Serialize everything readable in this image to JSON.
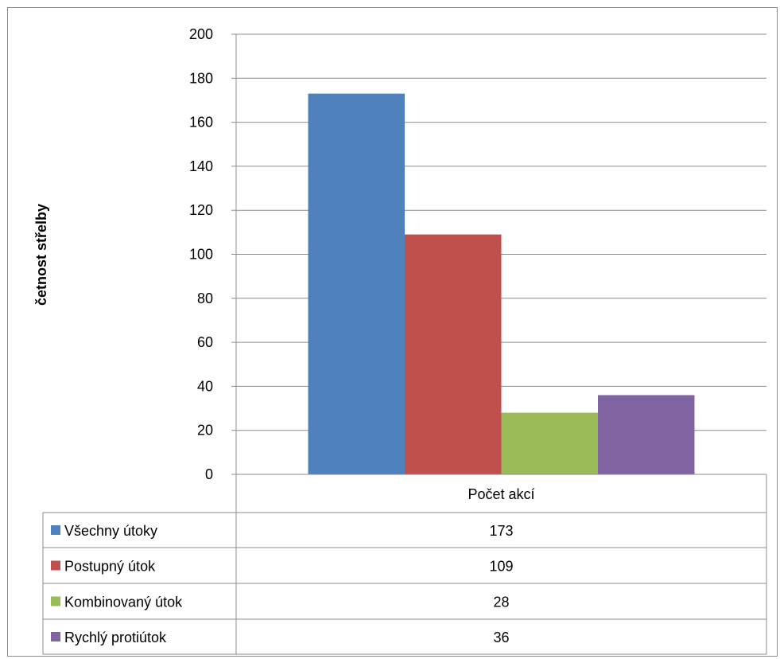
{
  "chart_data": {
    "type": "bar",
    "title": "",
    "xlabel": "",
    "ylabel": "četnost střelby",
    "categories": [
      "Počet akcí"
    ],
    "ylim": [
      0,
      200
    ],
    "yticks": [
      0,
      20,
      40,
      60,
      80,
      100,
      120,
      140,
      160,
      180,
      200
    ],
    "grid": true,
    "legend": "data-table",
    "series": [
      {
        "name": "Všechny útoky",
        "values": [
          173
        ],
        "color": "#4f81bd"
      },
      {
        "name": "Postupný útok",
        "values": [
          109
        ],
        "color": "#c0504d"
      },
      {
        "name": "Kombinovaný útok",
        "values": [
          28
        ],
        "color": "#9bbb59"
      },
      {
        "name": "Rychlý protiútok",
        "values": [
          36
        ],
        "color": "#8064a2"
      }
    ],
    "table": {
      "rows": [
        {
          "label": "Všechny útoky",
          "value": "173"
        },
        {
          "label": "Postupný útok",
          "value": "109"
        },
        {
          "label": "Kombinovaný útok",
          "value": "28"
        },
        {
          "label": "Rychlý protiútok",
          "value": "36"
        }
      ]
    }
  }
}
